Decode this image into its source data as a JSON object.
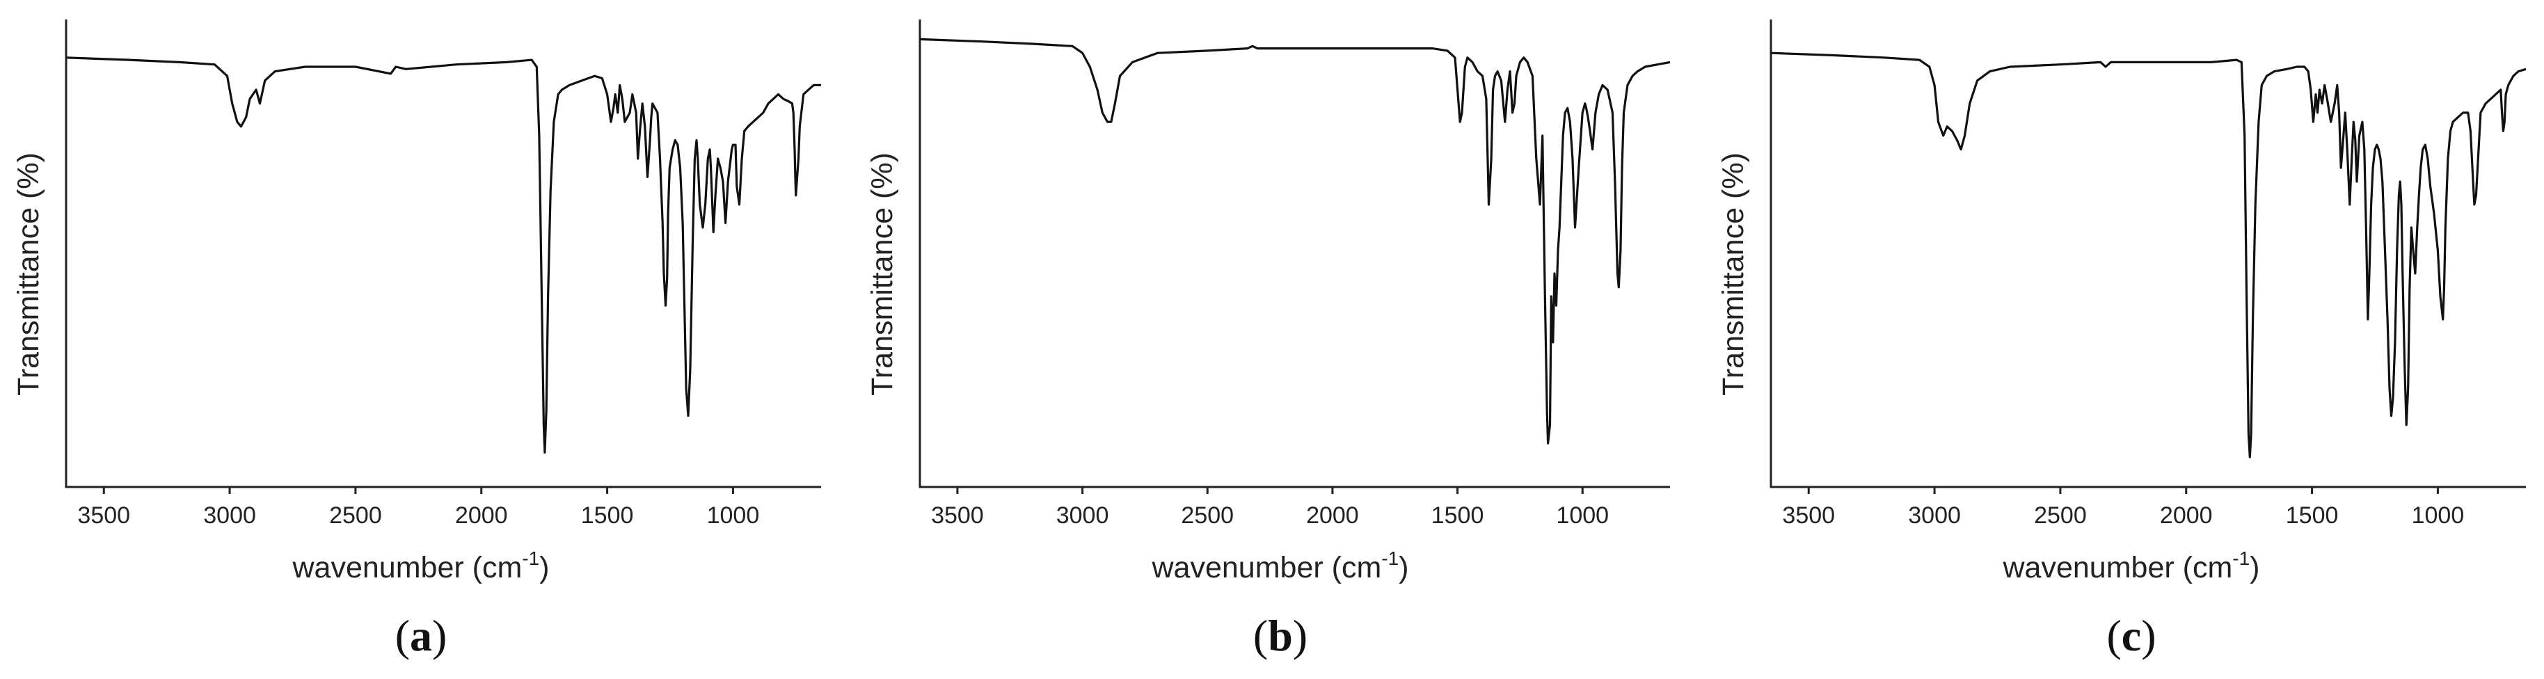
{
  "chart_data": [
    {
      "type": "line",
      "panel_label": "a",
      "xlabel": "wavenumber (cm",
      "xlabel_sup": "-1",
      "xlabel_suffix": ")",
      "ylabel": "Transmittance (%)",
      "xlim": [
        3650,
        650
      ],
      "x_reversed": true,
      "xticks": [
        3500,
        3000,
        2500,
        2000,
        1500,
        1000
      ],
      "y_tick_labels": false,
      "ylim": [
        0,
        100
      ],
      "grid": false,
      "legend": "none",
      "series": [
        {
          "x": [
            3650,
            3400,
            3200,
            3060,
            3010,
            2990,
            2970,
            2955,
            2935,
            2920,
            2895,
            2880,
            2860,
            2820,
            2700,
            2500,
            2360,
            2340,
            2300,
            2100,
            1900,
            1800,
            1780,
            1770,
            1760,
            1752,
            1748,
            1742,
            1735,
            1725,
            1712,
            1695,
            1680,
            1650,
            1600,
            1550,
            1520,
            1500,
            1485,
            1475,
            1468,
            1458,
            1450,
            1440,
            1430,
            1410,
            1400,
            1385,
            1378,
            1370,
            1360,
            1350,
            1340,
            1330,
            1325,
            1320,
            1300,
            1290,
            1280,
            1275,
            1268,
            1262,
            1258,
            1252,
            1240,
            1230,
            1220,
            1210,
            1200,
            1193,
            1186,
            1178,
            1170,
            1160,
            1152,
            1145,
            1140,
            1132,
            1120,
            1110,
            1100,
            1092,
            1088,
            1078,
            1070,
            1060,
            1050,
            1040,
            1030,
            1020,
            1005,
            1000,
            990,
            985,
            975,
            965,
            955,
            940,
            920,
            900,
            880,
            860,
            840,
            820,
            800,
            780,
            765,
            760,
            755,
            752,
            750,
            745,
            740,
            735,
            720,
            700,
            680,
            650
          ],
          "y": [
            92,
            91.5,
            91,
            90.5,
            88,
            82,
            78,
            77,
            79,
            83,
            85,
            82,
            87,
            89,
            90,
            90,
            88.5,
            90,
            89.5,
            90.5,
            91,
            91.5,
            90,
            75,
            40,
            12,
            6,
            15,
            40,
            63,
            78,
            84,
            85,
            86,
            87,
            88,
            87.5,
            84,
            78,
            81,
            84,
            80,
            86,
            83,
            78,
            80,
            84,
            80,
            70,
            76,
            82,
            77,
            66,
            74,
            79,
            82,
            80,
            70,
            56,
            45,
            38,
            44,
            58,
            68,
            72,
            74,
            73,
            68,
            56,
            38,
            20,
            14,
            24,
            52,
            70,
            74,
            70,
            60,
            55,
            60,
            70,
            72,
            68,
            54,
            62,
            70,
            68,
            65,
            56,
            65,
            72,
            73,
            73,
            64,
            60,
            70,
            76,
            77,
            78,
            79,
            80,
            82,
            83,
            84,
            83,
            82.5,
            82,
            80,
            72,
            65,
            62,
            66,
            70,
            77,
            84,
            85,
            86,
            86
          ]
        }
      ]
    },
    {
      "type": "line",
      "panel_label": "b",
      "xlabel": "wavenumber (cm",
      "xlabel_sup": "-1",
      "xlabel_suffix": ")",
      "ylabel": "Transmittance (%)",
      "xlim": [
        3650,
        650
      ],
      "x_reversed": true,
      "xticks": [
        3500,
        3000,
        2500,
        2000,
        1500,
        1000
      ],
      "y_tick_labels": false,
      "ylim": [
        0,
        100
      ],
      "grid": false,
      "legend": "none",
      "series": [
        {
          "x": [
            3650,
            3400,
            3200,
            3040,
            3000,
            2970,
            2940,
            2920,
            2900,
            2885,
            2870,
            2850,
            2800,
            2700,
            2500,
            2340,
            2320,
            2300,
            2100,
            1900,
            1700,
            1600,
            1540,
            1510,
            1500,
            1490,
            1482,
            1470,
            1460,
            1440,
            1420,
            1400,
            1385,
            1375,
            1365,
            1358,
            1350,
            1340,
            1325,
            1310,
            1300,
            1290,
            1280,
            1272,
            1265,
            1250,
            1235,
            1220,
            1200,
            1185,
            1170,
            1160,
            1150,
            1142,
            1138,
            1130,
            1125,
            1118,
            1112,
            1105,
            1098,
            1092,
            1085,
            1078,
            1070,
            1060,
            1050,
            1040,
            1030,
            1015,
            1000,
            990,
            985,
            978,
            970,
            960,
            948,
            935,
            920,
            900,
            880,
            870,
            860,
            855,
            848,
            842,
            835,
            820,
            800,
            780,
            750,
            700,
            650
          ],
          "y": [
            96,
            95.5,
            95,
            94.5,
            93,
            90,
            85,
            80,
            78,
            78,
            82,
            88,
            91,
            93,
            93.5,
            94,
            94.5,
            94,
            94,
            94,
            94,
            94,
            93.5,
            92,
            85,
            78,
            80,
            90,
            92,
            91,
            89,
            88,
            83,
            60,
            70,
            85,
            88,
            89,
            87,
            78,
            85,
            89,
            80,
            82,
            88,
            91,
            92,
            91,
            88,
            70,
            60,
            75,
            40,
            15,
            8,
            12,
            40,
            30,
            45,
            38,
            50,
            55,
            65,
            75,
            80,
            81,
            78,
            70,
            55,
            68,
            80,
            82,
            81,
            79,
            76,
            72,
            80,
            84,
            86,
            85,
            80,
            65,
            45,
            42,
            50,
            68,
            80,
            86,
            88,
            89,
            90,
            90.5,
            91
          ]
        }
      ]
    },
    {
      "type": "line",
      "panel_label": "c",
      "xlabel": "wavenumber (cm",
      "xlabel_sup": "-1",
      "xlabel_suffix": ")",
      "ylabel": "Transmittance (%)",
      "xlim": [
        3650,
        650
      ],
      "x_reversed": true,
      "xticks": [
        3500,
        3000,
        2500,
        2000,
        1500,
        1000
      ],
      "y_tick_labels": false,
      "ylim": [
        0,
        100
      ],
      "grid": false,
      "legend": "none",
      "series": [
        {
          "x": [
            3650,
            3400,
            3200,
            3060,
            3020,
            3000,
            2985,
            2965,
            2950,
            2930,
            2910,
            2895,
            2880,
            2860,
            2830,
            2780,
            2700,
            2500,
            2340,
            2320,
            2300,
            2100,
            1900,
            1800,
            1780,
            1768,
            1760,
            1752,
            1747,
            1742,
            1735,
            1725,
            1712,
            1700,
            1680,
            1650,
            1600,
            1560,
            1530,
            1515,
            1505,
            1495,
            1485,
            1478,
            1470,
            1460,
            1450,
            1440,
            1425,
            1410,
            1400,
            1392,
            1385,
            1375,
            1368,
            1360,
            1350,
            1342,
            1335,
            1328,
            1322,
            1312,
            1300,
            1292,
            1285,
            1278,
            1272,
            1265,
            1258,
            1250,
            1242,
            1235,
            1228,
            1220,
            1210,
            1200,
            1192,
            1185,
            1178,
            1170,
            1162,
            1155,
            1150,
            1145,
            1140,
            1132,
            1125,
            1118,
            1112,
            1105,
            1098,
            1090,
            1082,
            1075,
            1068,
            1060,
            1050,
            1040,
            1030,
            1015,
            1000,
            990,
            980,
            975,
            970,
            960,
            950,
            940,
            920,
            900,
            880,
            870,
            860,
            855,
            848,
            840,
            830,
            810,
            790,
            770,
            750,
            745,
            740,
            735,
            730,
            720,
            700,
            680,
            650
          ],
          "y": [
            93,
            92.5,
            92,
            91.5,
            90,
            86,
            78,
            75,
            77,
            76,
            74,
            72,
            75,
            82,
            87,
            89,
            90,
            90.5,
            91,
            90,
            91,
            91,
            91,
            91.5,
            91,
            75,
            40,
            10,
            5,
            10,
            35,
            60,
            78,
            86,
            88,
            89,
            89.5,
            90,
            90,
            89,
            85,
            78,
            84,
            80,
            85,
            82,
            86,
            83,
            78,
            82,
            86,
            80,
            68,
            75,
            80,
            72,
            60,
            70,
            78,
            74,
            65,
            75,
            78,
            72,
            55,
            35,
            45,
            60,
            68,
            72,
            73,
            72,
            70,
            65,
            50,
            35,
            20,
            14,
            18,
            30,
            50,
            62,
            65,
            60,
            45,
            25,
            12,
            20,
            42,
            55,
            50,
            45,
            55,
            62,
            68,
            72,
            73,
            70,
            64,
            58,
            50,
            40,
            35,
            42,
            55,
            70,
            76,
            78,
            79,
            80,
            80,
            76,
            65,
            60,
            62,
            70,
            80,
            82,
            83,
            84,
            85,
            80,
            76,
            78,
            84,
            86,
            88,
            89,
            89.5
          ]
        }
      ]
    }
  ]
}
